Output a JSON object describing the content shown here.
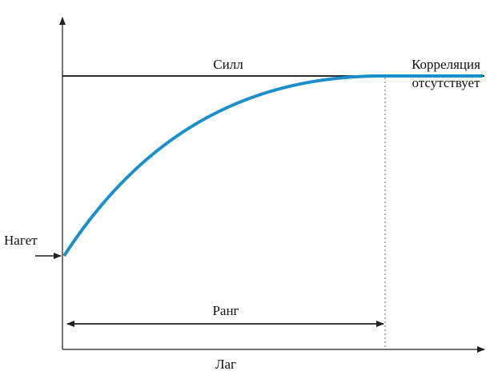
{
  "labels": {
    "sill": "Силл",
    "no_correlation": [
      "Корреляция",
      "отсутствует"
    ],
    "nugget": "Нагет",
    "range": "Ранг",
    "lag": "Лаг"
  }
}
